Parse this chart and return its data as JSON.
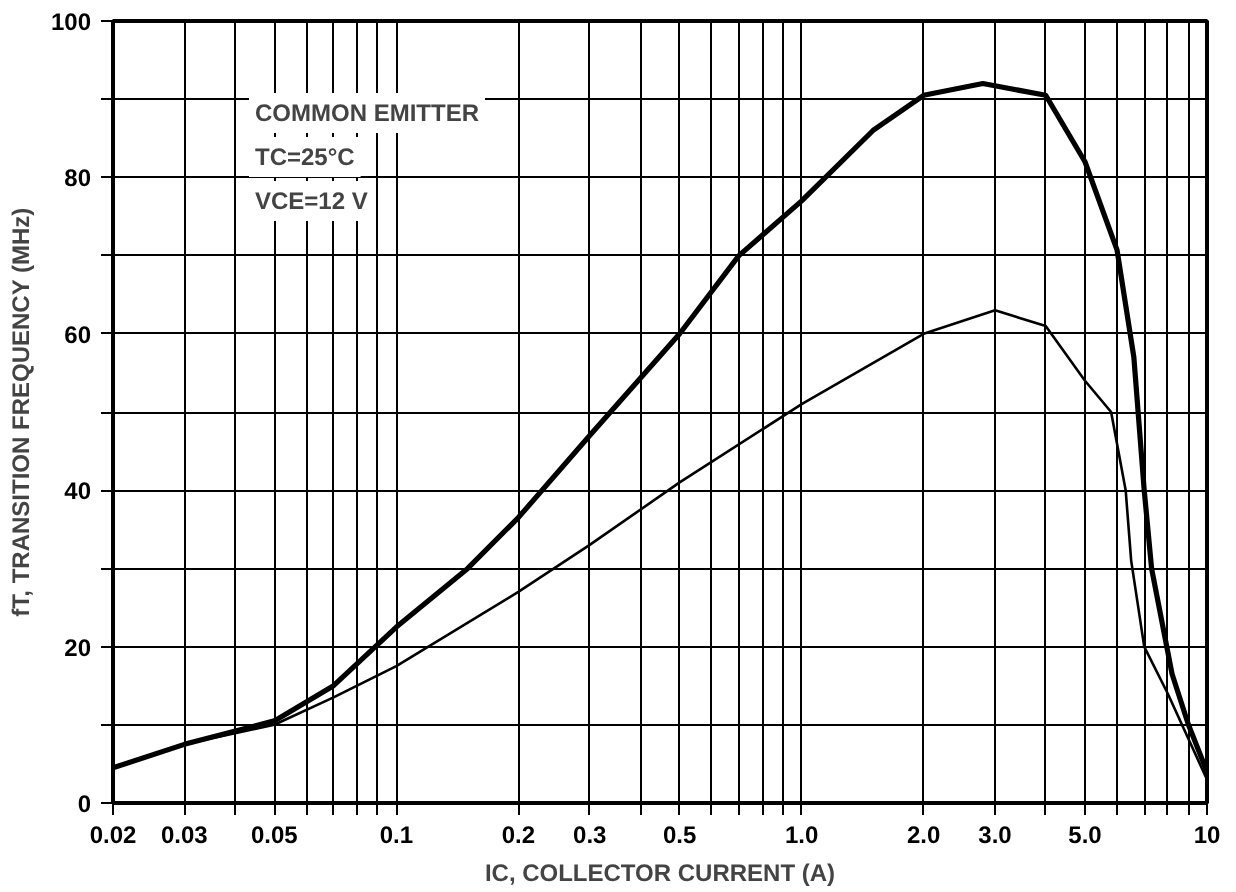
{
  "chart_data": {
    "type": "line",
    "xlabel": "IC, COLLECTOR CURRENT (A)",
    "ylabel": "fT, TRANSITION FREQUENCY (MHz)",
    "annotations": [
      "COMMON EMITTER",
      "TC=25°C",
      "VCE=12 V"
    ],
    "log": "x",
    "grid": true,
    "marker": "none",
    "line_style": "solid",
    "xlim": [
      0.02,
      10
    ],
    "ylim": [
      0,
      100
    ],
    "xticks": [
      0.02,
      0.03,
      {
        "value": 0.04,
        "label": null
      },
      0.05,
      {
        "value": 0.06,
        "label": null
      },
      {
        "value": 0.07,
        "label": null
      },
      {
        "value": 0.08,
        "label": null
      },
      {
        "value": 0.09,
        "label": null
      },
      0.1,
      0.2,
      0.3,
      {
        "value": 0.4,
        "label": null
      },
      0.5,
      {
        "value": 0.6,
        "label": null
      },
      {
        "value": 0.7,
        "label": null
      },
      {
        "value": 0.8,
        "label": null
      },
      {
        "value": 0.9,
        "label": null
      },
      {
        "value": 1,
        "label": "1.0"
      },
      {
        "value": 2,
        "label": "2.0"
      },
      {
        "value": 3,
        "label": "3.0"
      },
      {
        "value": 4,
        "label": null
      },
      {
        "value": 5,
        "label": "5.0"
      },
      {
        "value": 6,
        "label": null
      },
      {
        "value": 7,
        "label": null
      },
      {
        "value": 8,
        "label": null
      },
      {
        "value": 9,
        "label": null
      },
      10
    ],
    "yticks": [
      0,
      {
        "value": 10,
        "label": null
      },
      20,
      {
        "value": 30,
        "label": null
      },
      40,
      {
        "value": 50,
        "label": null
      },
      60,
      {
        "value": 70,
        "label": null
      },
      80,
      {
        "value": 90,
        "label": null
      },
      100
    ],
    "series": [
      {
        "color": "#000000",
        "x": [
          0.02,
          0.03,
          0.05,
          0.07,
          0.1,
          0.15,
          0.2,
          0.3,
          0.5,
          0.7,
          1.0,
          1.5,
          2.0,
          2.8,
          4.0,
          5.0,
          6.0,
          6.6,
          7.0,
          7.3,
          8.2,
          9.0,
          10
        ],
        "values": [
          4.5,
          7.5,
          10.5,
          15,
          22.5,
          30,
          36.5,
          47,
          60,
          70,
          77,
          86,
          90.5,
          92,
          90.5,
          82,
          70.7,
          57,
          40,
          30,
          16.5,
          10,
          4
        ]
      },
      {
        "color": "#000000",
        "x": [
          0.02,
          0.03,
          0.05,
          0.07,
          0.1,
          0.2,
          0.3,
          0.5,
          1.0,
          2.0,
          3.0,
          4.0,
          5.0,
          5.8,
          6.3,
          6.5,
          7.0,
          8.0,
          10
        ],
        "values": [
          4.5,
          7.5,
          10,
          13.5,
          17.5,
          27,
          33,
          41,
          51,
          60,
          63,
          61,
          54,
          50,
          40,
          31,
          20,
          14,
          3
        ]
      }
    ]
  }
}
